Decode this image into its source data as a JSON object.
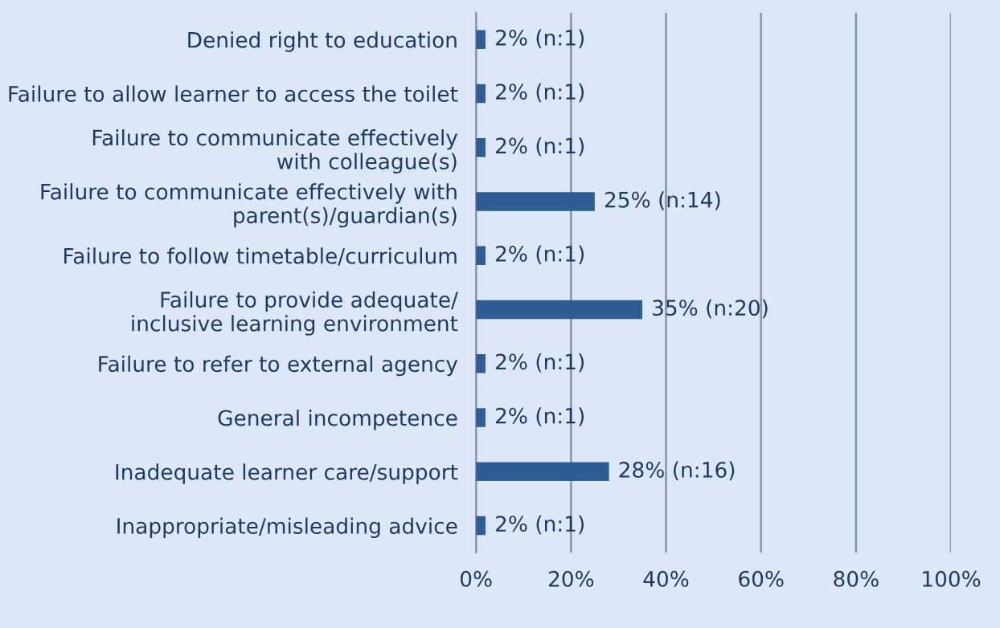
{
  "chart_data": {
    "type": "bar",
    "orientation": "horizontal",
    "categories": [
      "Denied right to education",
      "Failure to allow learner to access the toilet",
      "Failure to communicate effectively\nwith colleague(s)",
      "Failure to communicate effectively with\nparent(s)/guardian(s)",
      "Failure to follow timetable/curriculum",
      "Failure to provide adequate/\ninclusive learning environment",
      "Failure to refer to external agency",
      "General incompetence",
      "Inadequate learner care/support",
      "Inappropriate/misleading advice"
    ],
    "values": [
      2,
      2,
      2,
      25,
      2,
      35,
      2,
      2,
      28,
      2
    ],
    "value_labels": [
      "2% (n:1)",
      "2% (n:1)",
      "2% (n:1)",
      "25% (n:14)",
      "2% (n:1)",
      "35% (n:20)",
      "2% (n:1)",
      "2% (n:1)",
      "28% (n:16)",
      "2% (n:1)"
    ],
    "color": "#2e5c94",
    "xlim": [
      0,
      100
    ],
    "xticks": [
      {
        "value": 0,
        "label": "0%"
      },
      {
        "value": 20,
        "label": "20%"
      },
      {
        "value": 40,
        "label": "40%"
      },
      {
        "value": 60,
        "label": "60%"
      },
      {
        "value": 80,
        "label": "80%"
      },
      {
        "value": 100,
        "label": "100%"
      }
    ],
    "grid": "x"
  }
}
